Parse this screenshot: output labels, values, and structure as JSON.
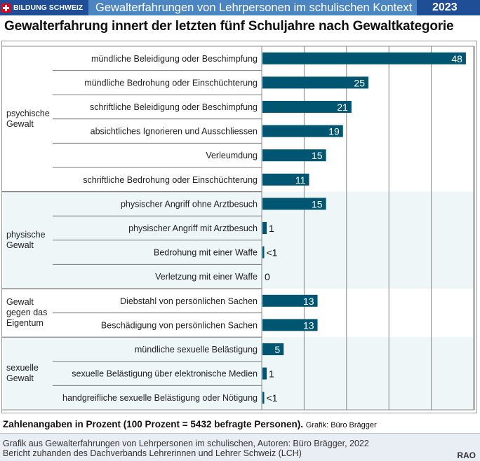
{
  "header": {
    "brand": "BILDUNG SCHWEIZ",
    "title": "Gewalterfahrungen von Lehrpersonen im schulischen Kontext",
    "year": "2023",
    "colors": {
      "brand_bg": "#1f4e96",
      "title_bg": "#4c86c2",
      "flag": "#e3051b"
    }
  },
  "headline": "Gewalterfahrung innert der letzten fünf Schuljahre nach Gewaltkategorie",
  "note": {
    "main": "Zahlenangaben in Prozent (100 Prozent = 5432 befragte Personen).",
    "credit": "Grafik: Büro Brägger"
  },
  "footer": {
    "line1": "Grafik aus  Gewalterfahrungen von Lehrpersonen im schulischen, Autoren: Büro Brägger, 2022",
    "line2": "Bericht zuhanden des Dachverbands Lehrerinnen und Lehrer Schweiz (LCH)",
    "tag": "RAO"
  },
  "chart_data": {
    "type": "bar",
    "orientation": "horizontal",
    "title": "Gewalterfahrung innert der letzten fünf Schuljahre nach Gewaltkategorie",
    "xlabel": "Prozent",
    "xlim": [
      0,
      50
    ],
    "grid_step": 10,
    "grid": true,
    "bar_color": "#005670",
    "band_color": "#eef6f7",
    "groups": [
      {
        "name": "psychische Gewalt",
        "label_lines": [
          "psychische",
          "Gewalt"
        ],
        "shaded": false,
        "items": [
          {
            "label": "mündliche Beleidigung oder Beschimpfung",
            "value": 48,
            "display": "48"
          },
          {
            "label": "mündliche Bedrohung oder Einschüchterung",
            "value": 25,
            "display": "25"
          },
          {
            "label": "schriftliche Beleidigung oder Beschimpfung",
            "value": 21,
            "display": "21"
          },
          {
            "label": "absichtliches Ignorieren und Ausschliessen",
            "value": 19,
            "display": "19"
          },
          {
            "label": "Verleumdung",
            "value": 15,
            "display": "15"
          },
          {
            "label": "schriftliche Bedrohung oder Einschüchterung",
            "value": 11,
            "display": "11"
          }
        ]
      },
      {
        "name": "physische Gewalt",
        "label_lines": [
          "physische",
          "Gewalt"
        ],
        "shaded": true,
        "items": [
          {
            "label": "physischer Angriff ohne Arztbesuch",
            "value": 15,
            "display": "15"
          },
          {
            "label": "physischer Angriff mit Arztbesuch",
            "value": 1,
            "display": "1"
          },
          {
            "label": "Bedrohung mit einer Waffe",
            "value": 0.4,
            "display": "<1"
          },
          {
            "label": "Verletzung mit einer Waffe",
            "value": 0,
            "display": "0"
          }
        ]
      },
      {
        "name": "Gewalt gegen das Eigentum",
        "label_lines": [
          "Gewalt",
          "gegen das",
          "Eigentum"
        ],
        "shaded": false,
        "items": [
          {
            "label": "Diebstahl von persönlichen Sachen",
            "value": 13,
            "display": "13"
          },
          {
            "label": "Beschädigung von persönlichen Sachen",
            "value": 13,
            "display": "13"
          }
        ]
      },
      {
        "name": "sexuelle Gewalt",
        "label_lines": [
          "sexuelle",
          "Gewalt"
        ],
        "shaded": true,
        "items": [
          {
            "label": "mündliche sexuelle Belästigung",
            "value": 5,
            "display": "5"
          },
          {
            "label": "sexuelle Belästigung über elektronische Medien",
            "value": 1,
            "display": "1"
          },
          {
            "label": "handgreifliche sexuelle Belästigung oder Nötigung",
            "value": 0.4,
            "display": "<1"
          }
        ]
      }
    ]
  }
}
